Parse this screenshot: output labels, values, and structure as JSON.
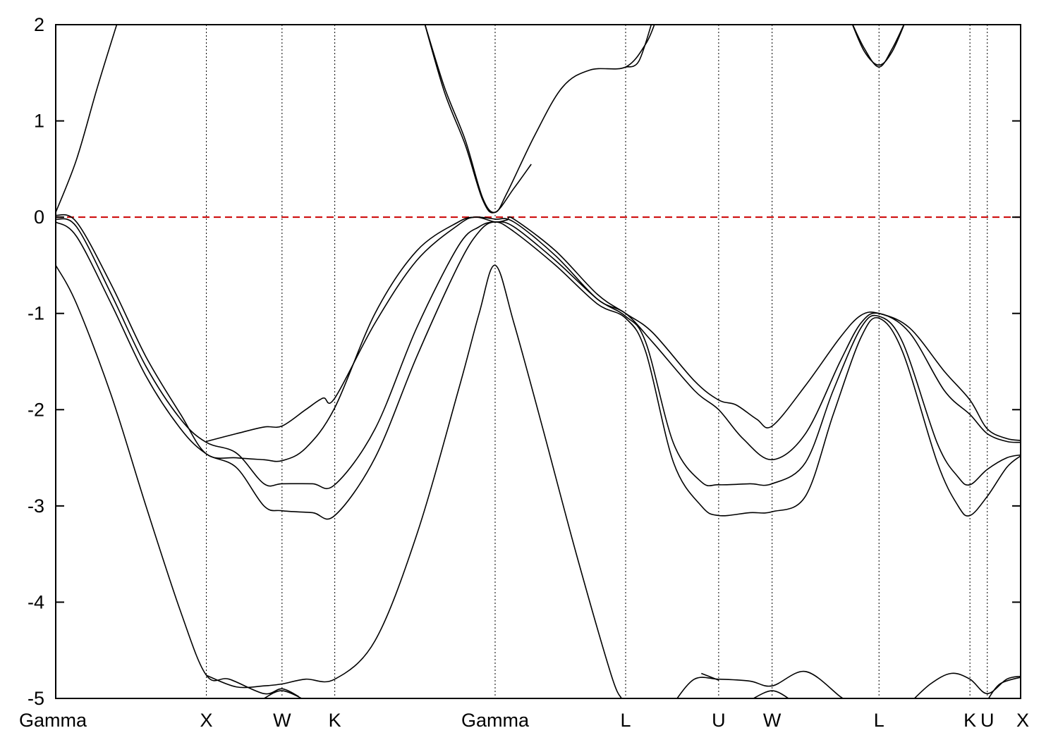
{
  "chart_data": {
    "type": "line",
    "title": "",
    "xlabel": "",
    "ylabel": "",
    "ylim": [
      -5,
      2
    ],
    "yticks": [
      -5,
      -4,
      -3,
      -2,
      -1,
      0,
      1,
      2
    ],
    "grid": "vertical dotted lines at high-symmetry points",
    "legend": "none",
    "xlim": [
      0,
      13.9
    ],
    "kpoints": [
      {
        "label": "Gamma",
        "x": 0.0
      },
      {
        "label": "X",
        "x": 2.17
      },
      {
        "label": "W",
        "x": 3.26
      },
      {
        "label": "K",
        "x": 4.02
      },
      {
        "label": "Gamma",
        "x": 6.33
      },
      {
        "label": "L",
        "x": 8.21
      },
      {
        "label": "U",
        "x": 9.55
      },
      {
        "label": "W",
        "x": 10.32
      },
      {
        "label": "L",
        "x": 11.86
      },
      {
        "label": "K",
        "x": 13.17
      },
      {
        "label": "U",
        "x": 13.42
      },
      {
        "label": "X",
        "x": 13.9
      }
    ],
    "reference_line": {
      "y": 0,
      "style": "dashed",
      "color": "#cc0000"
    },
    "series": [
      {
        "values": [
          [
            0,
            -0.5
          ],
          [
            0.3,
            -0.9
          ],
          [
            0.8,
            -1.85
          ],
          [
            1.3,
            -3.0
          ],
          [
            1.8,
            -4.1
          ],
          [
            2.17,
            -4.76
          ],
          [
            2.5,
            -4.8
          ],
          [
            3.0,
            -4.95
          ],
          [
            3.26,
            -4.9
          ],
          [
            3.5,
            -4.98
          ]
        ]
      },
      {
        "values": [
          [
            2.17,
            -4.76
          ],
          [
            2.6,
            -4.88
          ],
          [
            3.0,
            -4.87
          ],
          [
            3.26,
            -4.85
          ],
          [
            3.6,
            -4.8
          ],
          [
            4.02,
            -4.8
          ],
          [
            4.6,
            -4.4
          ],
          [
            5.2,
            -3.3
          ],
          [
            5.8,
            -1.8
          ],
          [
            6.1,
            -1.0
          ],
          [
            6.33,
            -0.5
          ],
          [
            6.6,
            -1.1
          ],
          [
            7.0,
            -2.15
          ],
          [
            7.5,
            -3.5
          ],
          [
            8.0,
            -4.75
          ],
          [
            8.15,
            -5.0
          ]
        ]
      },
      {
        "values": [
          [
            3.0,
            -5.0
          ],
          [
            3.26,
            -4.92
          ],
          [
            3.6,
            -5.02
          ]
        ]
      },
      {
        "values": [
          [
            0,
            -0.05
          ],
          [
            0.3,
            -0.2
          ],
          [
            0.8,
            -0.9
          ],
          [
            1.3,
            -1.65
          ],
          [
            1.8,
            -2.2
          ],
          [
            2.17,
            -2.46
          ],
          [
            2.6,
            -2.6
          ],
          [
            3.0,
            -3.0
          ],
          [
            3.26,
            -3.05
          ],
          [
            3.7,
            -3.07
          ],
          [
            4.02,
            -3.1
          ],
          [
            4.6,
            -2.5
          ],
          [
            5.2,
            -1.45
          ],
          [
            5.8,
            -0.5
          ],
          [
            6.1,
            -0.15
          ],
          [
            6.33,
            -0.05
          ],
          [
            6.6,
            -0.15
          ],
          [
            7.2,
            -0.5
          ],
          [
            7.8,
            -0.9
          ],
          [
            8.21,
            -1.05
          ],
          [
            8.5,
            -1.4
          ],
          [
            8.9,
            -2.55
          ],
          [
            9.3,
            -3.0
          ],
          [
            9.55,
            -3.1
          ],
          [
            10.0,
            -3.07
          ],
          [
            10.32,
            -3.06
          ],
          [
            10.8,
            -2.9
          ],
          [
            11.2,
            -2.05
          ],
          [
            11.6,
            -1.25
          ],
          [
            11.86,
            -1.05
          ],
          [
            12.2,
            -1.4
          ],
          [
            12.7,
            -2.55
          ],
          [
            13.0,
            -3.0
          ],
          [
            13.17,
            -3.1
          ],
          [
            13.42,
            -2.9
          ],
          [
            13.7,
            -2.6
          ],
          [
            13.9,
            -2.48
          ]
        ]
      },
      {
        "values": [
          [
            0,
            -0.02
          ],
          [
            0.3,
            -0.1
          ],
          [
            0.8,
            -0.8
          ],
          [
            1.3,
            -1.55
          ],
          [
            1.8,
            -2.1
          ],
          [
            2.17,
            -2.34
          ],
          [
            2.6,
            -2.45
          ],
          [
            3.0,
            -2.77
          ],
          [
            3.26,
            -2.77
          ],
          [
            3.7,
            -2.77
          ],
          [
            4.02,
            -2.78
          ],
          [
            4.6,
            -2.2
          ],
          [
            5.2,
            -1.15
          ],
          [
            5.8,
            -0.3
          ],
          [
            6.1,
            -0.1
          ],
          [
            6.33,
            -0.05
          ],
          [
            6.6,
            -0.1
          ],
          [
            7.2,
            -0.45
          ],
          [
            7.8,
            -0.85
          ],
          [
            8.21,
            -1.03
          ],
          [
            8.5,
            -1.3
          ],
          [
            8.9,
            -2.35
          ],
          [
            9.3,
            -2.75
          ],
          [
            9.55,
            -2.78
          ],
          [
            10.0,
            -2.77
          ],
          [
            10.32,
            -2.77
          ],
          [
            10.8,
            -2.55
          ],
          [
            11.2,
            -1.8
          ],
          [
            11.6,
            -1.15
          ],
          [
            11.86,
            -1.03
          ],
          [
            12.2,
            -1.3
          ],
          [
            12.7,
            -2.35
          ],
          [
            13.0,
            -2.7
          ],
          [
            13.17,
            -2.78
          ],
          [
            13.42,
            -2.62
          ],
          [
            13.7,
            -2.5
          ],
          [
            13.9,
            -2.47
          ]
        ]
      },
      {
        "values": [
          [
            0,
            0.02
          ],
          [
            0.3,
            -0.05
          ],
          [
            0.8,
            -0.7
          ],
          [
            1.3,
            -1.45
          ],
          [
            1.8,
            -2.05
          ],
          [
            2.17,
            -2.46
          ],
          [
            2.6,
            -2.5
          ],
          [
            3.0,
            -2.52
          ],
          [
            3.26,
            -2.53
          ],
          [
            3.6,
            -2.4
          ],
          [
            4.02,
            -1.98
          ],
          [
            4.6,
            -1.0
          ],
          [
            5.2,
            -0.35
          ],
          [
            5.8,
            -0.05
          ],
          [
            6.05,
            0.0
          ],
          [
            6.33,
            -0.02
          ],
          [
            6.6,
            -0.05
          ],
          [
            7.2,
            -0.4
          ],
          [
            7.8,
            -0.85
          ],
          [
            8.21,
            -1.0
          ],
          [
            8.6,
            -1.3
          ],
          [
            9.2,
            -1.8
          ],
          [
            9.55,
            -2.0
          ],
          [
            9.9,
            -2.3
          ],
          [
            10.32,
            -2.52
          ],
          [
            10.8,
            -2.25
          ],
          [
            11.3,
            -1.5
          ],
          [
            11.6,
            -1.1
          ],
          [
            11.86,
            -1.0
          ],
          [
            12.3,
            -1.2
          ],
          [
            12.8,
            -1.8
          ],
          [
            13.17,
            -2.05
          ],
          [
            13.42,
            -2.25
          ],
          [
            13.7,
            -2.33
          ],
          [
            13.9,
            -2.34
          ]
        ]
      },
      {
        "values": [
          [
            2.17,
            -2.33
          ],
          [
            2.6,
            -2.25
          ],
          [
            3.0,
            -2.18
          ],
          [
            3.26,
            -2.17
          ],
          [
            3.6,
            -2.0
          ],
          [
            3.85,
            -1.88
          ],
          [
            4.02,
            -1.88
          ],
          [
            4.6,
            -1.1
          ],
          [
            5.2,
            -0.45
          ],
          [
            5.8,
            -0.08
          ],
          [
            6.05,
            0.0
          ],
          [
            6.33,
            -0.05
          ],
          [
            6.5,
            -0.03
          ],
          [
            6.6,
            -0.02
          ],
          [
            7.2,
            -0.35
          ],
          [
            7.8,
            -0.8
          ],
          [
            8.21,
            -1.0
          ],
          [
            8.6,
            -1.2
          ],
          [
            9.2,
            -1.7
          ],
          [
            9.55,
            -1.9
          ],
          [
            9.8,
            -1.95
          ],
          [
            10.1,
            -2.1
          ],
          [
            10.32,
            -2.17
          ],
          [
            10.8,
            -1.75
          ],
          [
            11.3,
            -1.25
          ],
          [
            11.6,
            -1.02
          ],
          [
            11.86,
            -1.0
          ],
          [
            12.3,
            -1.15
          ],
          [
            12.8,
            -1.6
          ],
          [
            13.17,
            -1.9
          ],
          [
            13.42,
            -2.2
          ],
          [
            13.7,
            -2.3
          ],
          [
            13.9,
            -2.32
          ]
        ]
      },
      {
        "values": [
          [
            0,
            0.05
          ],
          [
            0.3,
            0.6
          ],
          [
            0.6,
            1.35
          ],
          [
            0.9,
            2.05
          ]
        ]
      },
      {
        "values": [
          [
            5.3,
            2.05
          ],
          [
            5.6,
            1.35
          ],
          [
            5.9,
            0.8
          ],
          [
            6.15,
            0.2
          ],
          [
            6.33,
            0.05
          ],
          [
            6.5,
            0.25
          ],
          [
            6.9,
            0.85
          ],
          [
            7.3,
            1.35
          ],
          [
            7.7,
            1.53
          ],
          [
            8.21,
            1.56
          ],
          [
            8.5,
            1.8
          ],
          [
            8.65,
            2.05
          ]
        ]
      },
      {
        "values": [
          [
            5.3,
            2.05
          ],
          [
            5.6,
            1.3
          ],
          [
            5.9,
            0.75
          ],
          [
            6.15,
            0.18
          ],
          [
            6.33,
            0.05
          ],
          [
            6.6,
            0.3
          ],
          [
            6.85,
            0.55
          ]
        ]
      },
      {
        "values": [
          [
            8.21,
            1.56
          ],
          [
            8.4,
            1.62
          ],
          [
            8.6,
            2.05
          ]
        ]
      },
      {
        "values": [
          [
            11.45,
            2.05
          ],
          [
            11.65,
            1.75
          ],
          [
            11.86,
            1.56
          ],
          [
            12.05,
            1.75
          ],
          [
            12.25,
            2.05
          ]
        ]
      },
      {
        "values": [
          [
            11.45,
            2.05
          ],
          [
            11.65,
            1.72
          ],
          [
            11.86,
            1.58
          ],
          [
            12.05,
            1.72
          ],
          [
            12.25,
            2.05
          ]
        ]
      },
      {
        "values": [
          [
            8.9,
            -5.05
          ],
          [
            9.2,
            -4.8
          ],
          [
            9.55,
            -4.8
          ],
          [
            10.0,
            -4.82
          ],
          [
            10.32,
            -4.87
          ],
          [
            10.8,
            -4.72
          ],
          [
            11.3,
            -4.98
          ],
          [
            11.45,
            -5.05
          ]
        ]
      },
      {
        "values": [
          [
            9.3,
            -4.74
          ],
          [
            9.55,
            -4.81
          ]
        ]
      },
      {
        "values": [
          [
            10.0,
            -5.02
          ],
          [
            10.32,
            -4.92
          ],
          [
            10.6,
            -5.02
          ]
        ]
      },
      {
        "values": [
          [
            12.3,
            -5.05
          ],
          [
            12.6,
            -4.85
          ],
          [
            12.9,
            -4.74
          ],
          [
            13.17,
            -4.8
          ],
          [
            13.42,
            -4.95
          ],
          [
            13.7,
            -4.8
          ],
          [
            13.9,
            -4.77
          ]
        ]
      },
      {
        "values": [
          [
            13.42,
            -5.02
          ],
          [
            13.6,
            -4.85
          ],
          [
            13.9,
            -4.78
          ]
        ]
      }
    ]
  }
}
